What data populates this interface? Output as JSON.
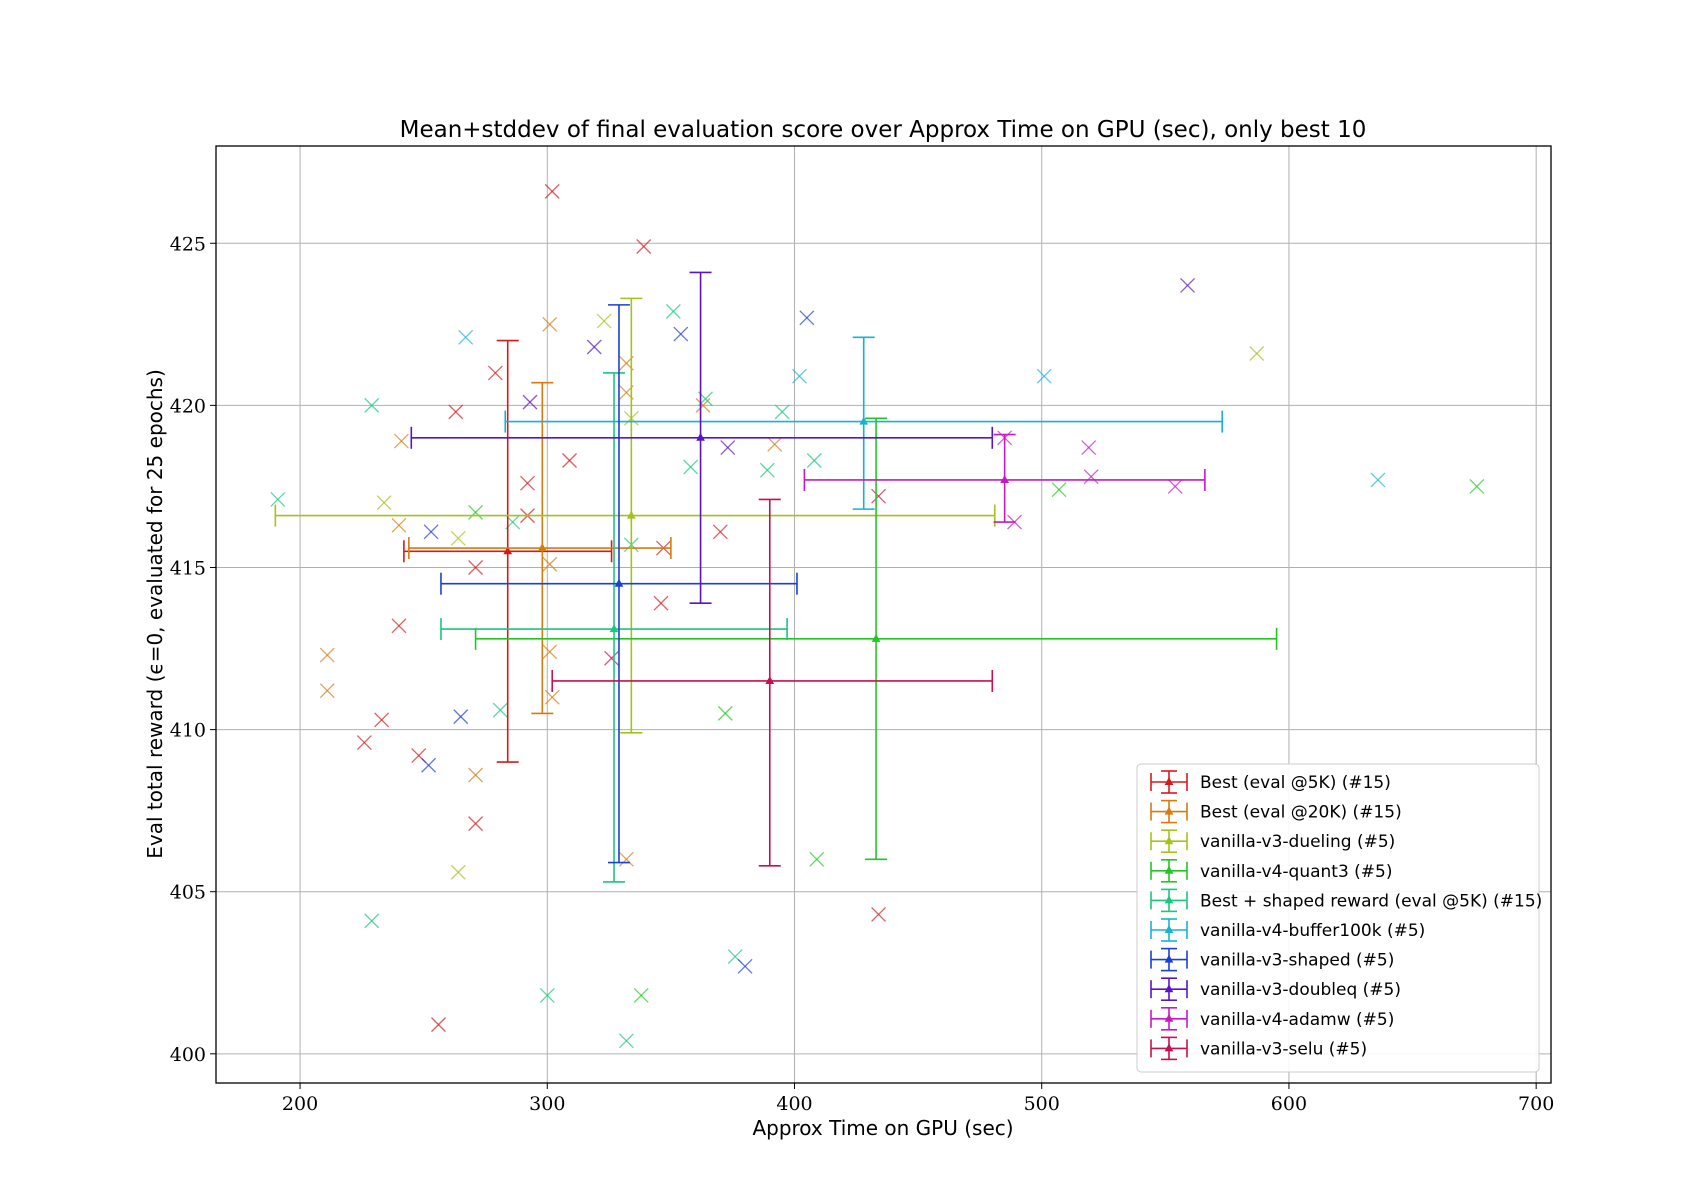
{
  "chart_data": {
    "type": "scatter",
    "title": "Mean+stddev of final evaluation score over Approx Time on GPU (sec), only best 10",
    "xlabel": "Approx Time on GPU (sec)",
    "ylabel": "Eval total reward (ϵ=0, evaluated for 25 epochs)",
    "xlim": [
      166,
      706
    ],
    "ylim": [
      399.1,
      428.0
    ],
    "xticks": [
      200,
      300,
      400,
      500,
      600,
      700
    ],
    "yticks": [
      400,
      405,
      410,
      415,
      420,
      425
    ],
    "grid": true,
    "legend_position": "lower-right",
    "series": [
      {
        "name": "Best (eval @5K) (#15)",
        "color": "#d7191c",
        "mean": {
          "x": 284,
          "y": 415.5,
          "xerr": [
            242,
            326
          ],
          "yerr": [
            409.0,
            422.0
          ]
        },
        "points": [
          [
            302,
            426.6
          ],
          [
            339,
            424.9
          ],
          [
            279,
            421.0
          ],
          [
            263,
            419.8
          ],
          [
            292,
            417.6
          ],
          [
            309,
            418.3
          ],
          [
            292,
            416.6
          ],
          [
            271,
            415.0
          ],
          [
            370,
            416.1
          ],
          [
            347,
            415.6
          ],
          [
            346,
            413.9
          ],
          [
            240,
            413.2
          ],
          [
            233,
            410.3
          ],
          [
            226,
            409.6
          ],
          [
            248,
            409.2
          ],
          [
            271,
            407.1
          ],
          [
            434,
            404.3
          ],
          [
            256,
            400.9
          ]
        ]
      },
      {
        "name": "Best (eval @20K) (#15)",
        "color": "#d97a0f",
        "mean": {
          "x": 298,
          "y": 415.6,
          "xerr": [
            244,
            350
          ],
          "yerr": [
            410.5,
            420.7
          ]
        },
        "points": [
          [
            301,
            422.5
          ],
          [
            332,
            421.3
          ],
          [
            332,
            420.4
          ],
          [
            363,
            420.0
          ],
          [
            241,
            418.9
          ],
          [
            392,
            418.8
          ],
          [
            240,
            416.3
          ],
          [
            301,
            415.1
          ],
          [
            211,
            412.3
          ],
          [
            301,
            412.4
          ],
          [
            211,
            411.2
          ],
          [
            302,
            411.0
          ],
          [
            271,
            408.6
          ],
          [
            332,
            406.0
          ]
        ]
      },
      {
        "name": "vanilla-v3-dueling (#5)",
        "color": "#a3c31a",
        "mean": {
          "x": 334,
          "y": 416.6,
          "xerr": [
            190,
            481
          ],
          "yerr": [
            409.9,
            423.3
          ]
        },
        "points": [
          [
            323,
            422.6
          ],
          [
            587,
            421.6
          ],
          [
            334,
            419.6
          ],
          [
            234,
            417.0
          ],
          [
            264,
            415.9
          ],
          [
            264,
            405.6
          ]
        ]
      },
      {
        "name": "vanilla-v4-quant3 (#5)",
        "color": "#22c722",
        "mean": {
          "x": 433,
          "y": 412.8,
          "xerr": [
            271,
            595
          ],
          "yerr": [
            406.0,
            419.6
          ]
        },
        "points": [
          [
            676,
            417.5
          ],
          [
            507,
            417.4
          ],
          [
            271,
            416.7
          ],
          [
            372,
            410.5
          ],
          [
            409,
            406.0
          ],
          [
            338,
            401.8
          ]
        ]
      },
      {
        "name": "Best + shaped reward (eval @5K) (#15)",
        "color": "#1ac77d",
        "mean": {
          "x": 327,
          "y": 413.1,
          "xerr": [
            257,
            397
          ],
          "yerr": [
            405.3,
            421.0
          ]
        },
        "points": [
          [
            351,
            422.9
          ],
          [
            229,
            420.0
          ],
          [
            364,
            420.2
          ],
          [
            395,
            419.8
          ],
          [
            408,
            418.3
          ],
          [
            358,
            418.1
          ],
          [
            389,
            418.0
          ],
          [
            191,
            417.1
          ],
          [
            286,
            416.4
          ],
          [
            334,
            415.7
          ],
          [
            281,
            410.6
          ],
          [
            229,
            404.1
          ],
          [
            376,
            403.0
          ],
          [
            300,
            401.8
          ],
          [
            332,
            400.4
          ]
        ]
      },
      {
        "name": "vanilla-v4-buffer100k (#5)",
        "color": "#17b2d3",
        "mean": {
          "x": 428,
          "y": 419.5,
          "xerr": [
            283,
            573
          ],
          "yerr": [
            416.8,
            422.1
          ]
        },
        "points": [
          [
            267,
            422.1
          ],
          [
            501,
            420.9
          ],
          [
            402,
            420.9
          ],
          [
            636,
            417.7
          ]
        ]
      },
      {
        "name": "vanilla-v3-shaped (#5)",
        "color": "#1c3fd6",
        "mean": {
          "x": 329,
          "y": 414.5,
          "xerr": [
            257,
            401
          ],
          "yerr": [
            405.9,
            423.1
          ]
        },
        "points": [
          [
            354,
            422.2
          ],
          [
            405,
            422.7
          ],
          [
            253,
            416.1
          ],
          [
            252,
            408.9
          ],
          [
            265,
            410.4
          ],
          [
            380,
            402.7
          ]
        ]
      },
      {
        "name": "vanilla-v3-doubleq (#5)",
        "color": "#5a14c8",
        "mean": {
          "x": 362,
          "y": 419.0,
          "xerr": [
            245,
            480
          ],
          "yerr": [
            413.9,
            424.1
          ]
        },
        "points": [
          [
            559,
            423.7
          ],
          [
            319,
            421.8
          ],
          [
            293,
            420.1
          ],
          [
            373,
            418.7
          ]
        ]
      },
      {
        "name": "vanilla-v4-adamw (#5)",
        "color": "#c618c6",
        "mean": {
          "x": 485,
          "y": 417.7,
          "xerr": [
            404,
            566
          ],
          "yerr": [
            416.4,
            419.1
          ]
        },
        "points": [
          [
            485,
            419.0
          ],
          [
            519,
            418.7
          ],
          [
            520,
            417.8
          ],
          [
            554,
            417.5
          ],
          [
            489,
            416.4
          ]
        ]
      },
      {
        "name": "vanilla-v3-selu (#5)",
        "color": "#c70f52",
        "mean": {
          "x": 390,
          "y": 411.5,
          "xerr": [
            302,
            480
          ],
          "yerr": [
            405.8,
            417.1
          ]
        },
        "points": [
          [
            434,
            417.2
          ],
          [
            326,
            412.2
          ]
        ]
      }
    ]
  }
}
